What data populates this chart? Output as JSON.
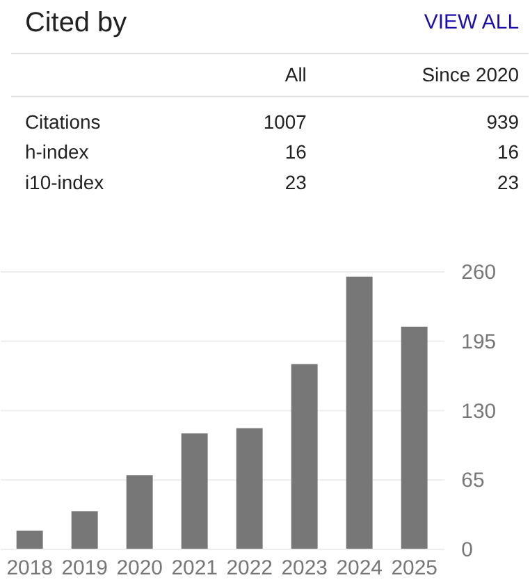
{
  "chart_data": [
    {
      "type": "other",
      "title": "Cited by",
      "annotations": [
        "VIEW ALL"
      ],
      "categories": [
        "Citations",
        "h-index",
        "i10-index"
      ],
      "data_labels": true,
      "series": [
        {
          "name": "All",
          "values": [
            1007,
            16,
            23
          ]
        },
        {
          "name": "Since 2020",
          "values": [
            939,
            16,
            23
          ]
        }
      ]
    },
    {
      "type": "bar",
      "categories": [
        "2018",
        "2019",
        "2020",
        "2021",
        "2022",
        "2023",
        "2024",
        "2025"
      ],
      "values": [
        17,
        35,
        69,
        108,
        113,
        173,
        255,
        208
      ],
      "color": "#777777",
      "ylim": [
        0,
        260
      ],
      "yticks": [
        0,
        65,
        130,
        195,
        260
      ],
      "grid": "y"
    }
  ]
}
